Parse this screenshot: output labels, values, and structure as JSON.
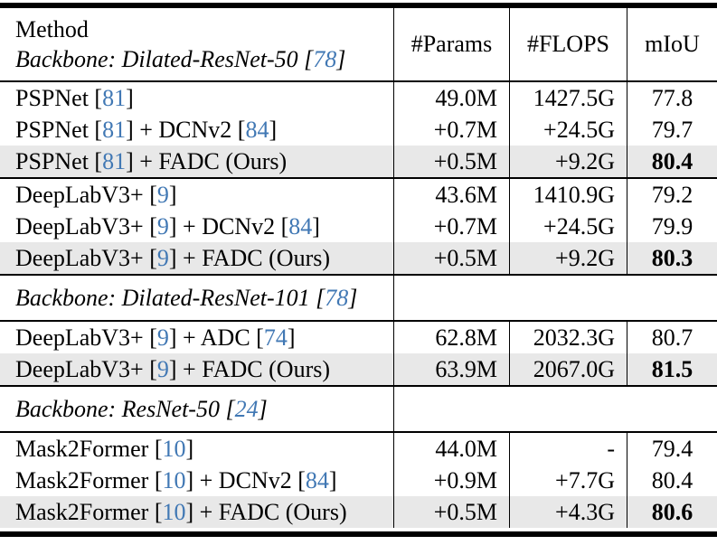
{
  "colors": {
    "citation_blue": "#4178b4",
    "highlight_row": "#e8e8e8",
    "rule_black": "#000000",
    "background": "#ffffff"
  },
  "table": {
    "header": {
      "method_title": "Method",
      "backbone_parts": [
        {
          "t": "Backbone: Dilated-ResNet-50 ["
        },
        {
          "t": "78",
          "cite": true
        },
        {
          "t": "]"
        }
      ],
      "columns": [
        "#Params",
        "#FLOPS",
        "mIoU"
      ]
    },
    "groups": [
      {
        "type": "data",
        "rows": [
          {
            "method_parts": [
              {
                "t": "PSPNet ["
              },
              {
                "t": "81",
                "cite": true
              },
              {
                "t": "]"
              }
            ],
            "params": "49.0M",
            "flops": "1427.5G",
            "miou": "77.8",
            "highlight": false,
            "miou_bold": false
          },
          {
            "method_parts": [
              {
                "t": "PSPNet ["
              },
              {
                "t": "81",
                "cite": true
              },
              {
                "t": "] + DCNv2 ["
              },
              {
                "t": "84",
                "cite": true
              },
              {
                "t": "]"
              }
            ],
            "params": "+0.7M",
            "flops": "+24.5G",
            "miou": "79.7",
            "highlight": false,
            "miou_bold": false
          },
          {
            "method_parts": [
              {
                "t": "PSPNet ["
              },
              {
                "t": "81",
                "cite": true
              },
              {
                "t": "] + FADC (Ours)"
              }
            ],
            "params": "+0.5M",
            "flops": "+9.2G",
            "miou": "80.4",
            "highlight": true,
            "miou_bold": true
          }
        ]
      },
      {
        "type": "data",
        "rows": [
          {
            "method_parts": [
              {
                "t": "DeepLabV3+ ["
              },
              {
                "t": "9",
                "cite": true
              },
              {
                "t": "]"
              }
            ],
            "params": "43.6M",
            "flops": "1410.9G",
            "miou": "79.2",
            "highlight": false,
            "miou_bold": false
          },
          {
            "method_parts": [
              {
                "t": "DeepLabV3+ ["
              },
              {
                "t": "9",
                "cite": true
              },
              {
                "t": "] + DCNv2 ["
              },
              {
                "t": "84",
                "cite": true
              },
              {
                "t": "]"
              }
            ],
            "params": "+0.7M",
            "flops": "+24.5G",
            "miou": "79.9",
            "highlight": false,
            "miou_bold": false
          },
          {
            "method_parts": [
              {
                "t": "DeepLabV3+ ["
              },
              {
                "t": "9",
                "cite": true
              },
              {
                "t": "] + FADC (Ours)"
              }
            ],
            "params": "+0.5M",
            "flops": "+9.2G",
            "miou": "80.3",
            "highlight": true,
            "miou_bold": true
          }
        ]
      },
      {
        "type": "backbone",
        "parts": [
          {
            "t": "Backbone: Dilated-ResNet-101 ["
          },
          {
            "t": "78",
            "cite": true
          },
          {
            "t": "]"
          }
        ]
      },
      {
        "type": "data",
        "rows": [
          {
            "method_parts": [
              {
                "t": "DeepLabV3+ ["
              },
              {
                "t": "9",
                "cite": true
              },
              {
                "t": "] + ADC ["
              },
              {
                "t": "74",
                "cite": true
              },
              {
                "t": "]"
              }
            ],
            "params": "62.8M",
            "flops": "2032.3G",
            "miou": "80.7",
            "highlight": false,
            "miou_bold": false
          },
          {
            "method_parts": [
              {
                "t": "DeepLabV3+ ["
              },
              {
                "t": "9",
                "cite": true
              },
              {
                "t": "] + FADC (Ours)"
              }
            ],
            "params": "63.9M",
            "flops": "2067.0G",
            "miou": "81.5",
            "highlight": true,
            "miou_bold": true
          }
        ]
      },
      {
        "type": "backbone",
        "parts": [
          {
            "t": "Backbone: ResNet-50 ["
          },
          {
            "t": "24",
            "cite": true
          },
          {
            "t": "]"
          }
        ]
      },
      {
        "type": "data",
        "rows": [
          {
            "method_parts": [
              {
                "t": "Mask2Former ["
              },
              {
                "t": "10",
                "cite": true
              },
              {
                "t": "]"
              }
            ],
            "params": "44.0M",
            "flops": "-",
            "miou": "79.4",
            "highlight": false,
            "miou_bold": false
          },
          {
            "method_parts": [
              {
                "t": "Mask2Former ["
              },
              {
                "t": "10",
                "cite": true
              },
              {
                "t": "] + DCNv2 ["
              },
              {
                "t": "84",
                "cite": true
              },
              {
                "t": "]"
              }
            ],
            "params": "+0.9M",
            "flops": "+7.7G",
            "miou": "80.4",
            "highlight": false,
            "miou_bold": false
          },
          {
            "method_parts": [
              {
                "t": "Mask2Former ["
              },
              {
                "t": "10",
                "cite": true
              },
              {
                "t": "] + FADC (Ours)"
              }
            ],
            "params": "+0.5M",
            "flops": "+4.3G",
            "miou": "80.6",
            "highlight": true,
            "miou_bold": true
          }
        ]
      }
    ]
  }
}
